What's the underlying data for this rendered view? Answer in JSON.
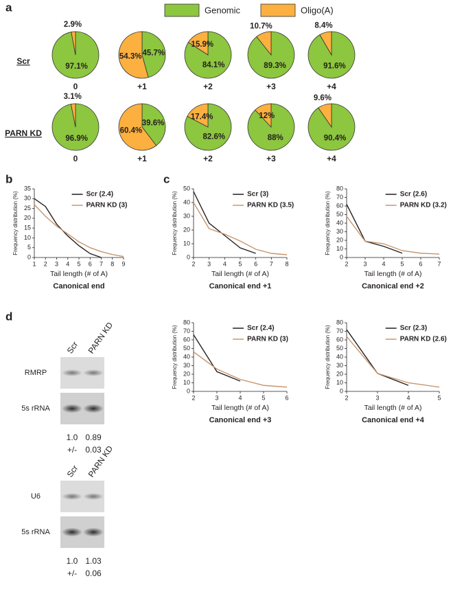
{
  "panel_labels": [
    "a",
    "b",
    "c",
    "d"
  ],
  "chart_data": [
    {
      "type": "pie-grid",
      "series": [
        {
          "name": "Genomic",
          "color": "#8dc63f"
        },
        {
          "name": "Oligo(A)",
          "color": "#fbb040"
        }
      ],
      "rows": [
        {
          "name": "Scr",
          "pies": [
            {
              "label": "0",
              "values": [
                97.1,
                2.9
              ],
              "value_labels": [
                "97.1%",
                "2.9%"
              ]
            },
            {
              "label": "+1",
              "values": [
                45.7,
                54.3
              ],
              "value_labels": [
                "45.7%",
                "54.3%"
              ]
            },
            {
              "label": "+2",
              "values": [
                84.1,
                15.9
              ],
              "value_labels": [
                "84.1%",
                "15.9%"
              ]
            },
            {
              "label": "+3",
              "values": [
                89.3,
                10.7
              ],
              "value_labels": [
                "89.3%",
                "10.7%"
              ]
            },
            {
              "label": "+4",
              "values": [
                91.6,
                8.4
              ],
              "value_labels": [
                "91.6%",
                "8.4%"
              ]
            }
          ]
        },
        {
          "name": "PARN KD",
          "pies": [
            {
              "label": "0",
              "values": [
                96.9,
                3.1
              ],
              "value_labels": [
                "96.9%",
                "3.1%"
              ]
            },
            {
              "label": "+1",
              "values": [
                39.6,
                60.4
              ],
              "value_labels": [
                "39.6%",
                "60.4%"
              ]
            },
            {
              "label": "+2",
              "values": [
                82.6,
                17.4
              ],
              "value_labels": [
                "82.6%",
                "17.4%"
              ]
            },
            {
              "label": "+3",
              "values": [
                88,
                12
              ],
              "value_labels": [
                "88%",
                "12%"
              ]
            },
            {
              "label": "+4",
              "values": [
                90.4,
                9.6
              ],
              "value_labels": [
                "90.4%",
                "9.6%"
              ]
            }
          ]
        }
      ]
    },
    {
      "type": "line",
      "title": "Canonical end",
      "xlabel": "Tail length (# of A)",
      "ylabel": "Frequency distribution (%)",
      "xlim": [
        1,
        9
      ],
      "xticks": [
        1,
        2,
        3,
        4,
        5,
        6,
        7,
        8,
        9
      ],
      "ylim": [
        0,
        35
      ],
      "yticks": [
        0,
        5,
        10,
        15,
        20,
        25,
        30,
        35
      ],
      "series": [
        {
          "name": "Scr (2.4)",
          "color": "#231f20",
          "x": [
            1,
            2,
            3,
            4,
            5,
            6,
            7
          ],
          "values": [
            30,
            26,
            17,
            11,
            6,
            2,
            0
          ]
        },
        {
          "name": "PARN KD (3)",
          "color": "#c8956c",
          "x": [
            1,
            2,
            3,
            4,
            5,
            6,
            7,
            8,
            9
          ],
          "values": [
            27,
            21,
            16,
            12,
            8,
            5,
            3,
            1.5,
            0.5
          ]
        }
      ]
    },
    {
      "type": "line",
      "title": "Canonical end +1",
      "xlabel": "Tail length (# of A)",
      "ylabel": "Frequency distribution (%)",
      "xlim": [
        2,
        8
      ],
      "xticks": [
        2,
        3,
        4,
        5,
        6,
        7,
        8
      ],
      "ylim": [
        0,
        50
      ],
      "yticks": [
        0,
        10,
        20,
        30,
        40,
        50
      ],
      "series": [
        {
          "name": "Scr (3)",
          "color": "#231f20",
          "x": [
            2,
            3,
            4,
            5,
            6
          ],
          "values": [
            48,
            25,
            16,
            7,
            3
          ]
        },
        {
          "name": "PARN KD (3.5)",
          "color": "#c8956c",
          "x": [
            2,
            3,
            4,
            5,
            6,
            7,
            8
          ],
          "values": [
            40,
            21,
            17,
            12,
            6,
            3,
            2
          ]
        }
      ]
    },
    {
      "type": "line",
      "title": "Canonical end +2",
      "xlabel": "Tail length (# of A)",
      "ylabel": "Frequency distribution (%)",
      "xlim": [
        2,
        7
      ],
      "xticks": [
        2,
        3,
        4,
        5,
        6,
        7
      ],
      "ylim": [
        0,
        80
      ],
      "yticks": [
        0,
        10,
        20,
        30,
        40,
        50,
        60,
        70,
        80
      ],
      "series": [
        {
          "name": "Scr (2.6)",
          "color": "#231f20",
          "x": [
            2,
            3,
            4,
            5
          ],
          "values": [
            62,
            19,
            13,
            5
          ]
        },
        {
          "name": "PARN KD (3.2)",
          "color": "#c8956c",
          "x": [
            2,
            3,
            4,
            5,
            6,
            7
          ],
          "values": [
            48,
            19,
            16,
            8,
            5,
            4
          ]
        }
      ]
    },
    {
      "type": "line",
      "title": "Canonical end +3",
      "xlabel": "Tail length (# of A)",
      "ylabel": "Frequency distribution (%)",
      "xlim": [
        2,
        6
      ],
      "xticks": [
        2,
        3,
        4,
        5,
        6
      ],
      "ylim": [
        0,
        80
      ],
      "yticks": [
        0,
        10,
        20,
        30,
        40,
        50,
        60,
        70,
        80
      ],
      "series": [
        {
          "name": "Scr (2.4)",
          "color": "#231f20",
          "x": [
            2,
            3,
            4
          ],
          "values": [
            66,
            23,
            12
          ]
        },
        {
          "name": "PARN KD (3)",
          "color": "#c8956c",
          "x": [
            2,
            3,
            4,
            5,
            6
          ],
          "values": [
            46,
            26,
            14,
            7,
            5
          ]
        }
      ]
    },
    {
      "type": "line",
      "title": "Canonical end +4",
      "xlabel": "Tail length (# of A)",
      "ylabel": "Frequency distribution (%)",
      "xlim": [
        2,
        5
      ],
      "xticks": [
        2,
        3,
        4,
        5
      ],
      "ylim": [
        0,
        80
      ],
      "yticks": [
        0,
        10,
        20,
        30,
        40,
        50,
        60,
        70,
        80
      ],
      "series": [
        {
          "name": "Scr (2.3)",
          "color": "#231f20",
          "x": [
            2,
            3,
            4
          ],
          "values": [
            72,
            21,
            7
          ]
        },
        {
          "name": "PARN KD (2.6)",
          "color": "#c8956c",
          "x": [
            2,
            3,
            4,
            5
          ],
          "values": [
            64,
            21,
            10,
            5
          ]
        }
      ]
    }
  ],
  "blots": [
    {
      "lanes": [
        "Scr",
        "PARN KD"
      ],
      "bands": [
        "RMRP",
        "5s rRNA"
      ],
      "quantification": [
        [
          "1.0",
          "0.89"
        ],
        [
          "+/-",
          "0.03"
        ]
      ]
    },
    {
      "lanes": [
        "Scr",
        "PARN KD"
      ],
      "bands": [
        "U6",
        "5s rRNA"
      ],
      "quantification": [
        [
          "1.0",
          "1.03"
        ],
        [
          "+/-",
          "0.06"
        ]
      ]
    }
  ]
}
